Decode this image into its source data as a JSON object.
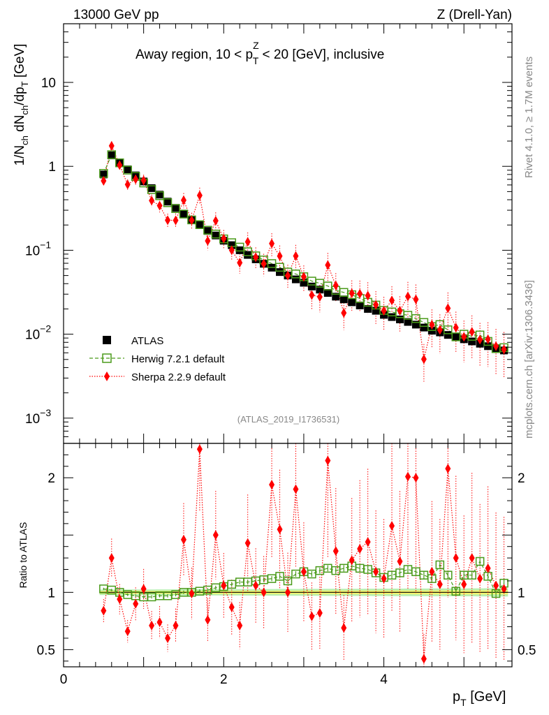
{
  "header": {
    "left": "13000 GeV pp",
    "right": "Z (Drell-Yan)",
    "title_main": "Away region, 10 < p",
    "title_sup": "Z",
    "title_sub": "T",
    "title_rest": " < 20 [GeV], inclusive",
    "analysis_id": "(ATLAS_2019_I1736531)"
  },
  "side_labels": {
    "rivet": "Rivet 4.1.0, ≥ 1.7M events",
    "mcplots": "mcplots.cern.ch [arXiv:1306.3436]"
  },
  "axes": {
    "ylabel_main": "1/N",
    "ylabel_main_sub1": "ch",
    "ylabel_main_mid": " dN",
    "ylabel_main_sub2": "ch",
    "ylabel_main_end": "/dp",
    "ylabel_main_sub3": "T",
    "ylabel_main_unit": " [GeV]",
    "ylabel_ratio": "Ratio to ATLAS",
    "xlabel": "p",
    "xlabel_sub": "T",
    "xlabel_unit": " [GeV]",
    "main_ticks": [
      {
        "label": "10",
        "sup": "",
        "value": 10
      },
      {
        "label": "1",
        "sup": "",
        "value": 1
      },
      {
        "label": "10",
        "sup": "−1",
        "value": 0.1
      },
      {
        "label": "10",
        "sup": "−2",
        "value": 0.01
      },
      {
        "label": "10",
        "sup": "−3",
        "value": 0.001
      }
    ],
    "ratio_ticks": [
      {
        "label": "2",
        "value": 2
      },
      {
        "label": "1",
        "value": 1
      },
      {
        "label": "0.5",
        "value": 0.5
      }
    ],
    "x_ticks": [
      {
        "label": "0",
        "value": 0
      },
      {
        "label": "2",
        "value": 2
      },
      {
        "label": "4",
        "value": 4
      }
    ]
  },
  "legend": [
    {
      "name": "ATLAS"
    },
    {
      "name": "Herwig 7.2.1 default"
    },
    {
      "name": "Sherpa 2.2.9 default"
    }
  ],
  "colors": {
    "atlas": "#000000",
    "herwig": "#4a9a1a",
    "sherpa": "#ff0000",
    "band_inner": "#f5f570",
    "band_outer": "#b9f0b0"
  },
  "chart_data": {
    "type": "scatter",
    "title": "Away region, 10 < pT(Z) < 20 [GeV], inclusive",
    "xlabel": "pT [GeV]",
    "ylabel": "1/Nch dNch/dpT [GeV]",
    "ylabel_ratio": "Ratio to ATLAS",
    "xlim": [
      0,
      5.6
    ],
    "ylim": [
      0.0005,
      50
    ],
    "ylog": true,
    "ratio_ylim": [
      0.35,
      2.3
    ],
    "x": [
      0.5,
      0.6,
      0.7,
      0.8,
      0.9,
      1.0,
      1.1,
      1.2,
      1.3,
      1.4,
      1.5,
      1.6,
      1.7,
      1.8,
      1.9,
      2.0,
      2.1,
      2.2,
      2.3,
      2.4,
      2.5,
      2.6,
      2.7,
      2.8,
      2.9,
      3.0,
      3.1,
      3.2,
      3.3,
      3.4,
      3.5,
      3.6,
      3.7,
      3.8,
      3.9,
      4.0,
      4.1,
      4.2,
      4.3,
      4.4,
      4.5,
      4.6,
      4.7,
      4.8,
      4.9,
      5.0,
      5.1,
      5.2,
      5.3,
      5.4,
      5.5
    ],
    "series": [
      {
        "name": "ATLAS",
        "values": [
          0.8,
          1.35,
          1.1,
          0.92,
          0.78,
          0.66,
          0.55,
          0.46,
          0.38,
          0.32,
          0.27,
          0.23,
          0.2,
          0.17,
          0.15,
          0.13,
          0.115,
          0.1,
          0.088,
          0.078,
          0.069,
          0.062,
          0.055,
          0.05,
          0.045,
          0.041,
          0.037,
          0.034,
          0.031,
          0.028,
          0.026,
          0.024,
          0.022,
          0.02,
          0.019,
          0.017,
          0.016,
          0.015,
          0.014,
          0.013,
          0.012,
          0.011,
          0.0105,
          0.0098,
          0.0092,
          0.0087,
          0.0082,
          0.0077,
          0.0072,
          0.0068,
          0.0064
        ]
      },
      {
        "name": "Herwig 7.2.1 default",
        "ratio": [
          1.03,
          1.02,
          1.0,
          0.98,
          0.97,
          0.96,
          0.96,
          0.97,
          0.97,
          0.98,
          1.0,
          1.0,
          1.01,
          1.02,
          1.04,
          1.05,
          1.07,
          1.09,
          1.09,
          1.1,
          1.11,
          1.12,
          1.14,
          1.1,
          1.16,
          1.18,
          1.16,
          1.19,
          1.21,
          1.19,
          1.21,
          1.23,
          1.21,
          1.2,
          1.17,
          1.13,
          1.15,
          1.17,
          1.2,
          1.18,
          1.15,
          1.12,
          1.24,
          1.15,
          1.01,
          1.15,
          1.15,
          1.27,
          1.14,
          0.99,
          1.08
        ]
      },
      {
        "name": "Sherpa 2.2.9 default",
        "ratio": [
          0.84,
          1.3,
          0.94,
          0.66,
          0.9,
          1.03,
          0.71,
          0.74,
          0.6,
          0.71,
          1.46,
          0.99,
          2.25,
          0.76,
          1.5,
          1.06,
          0.87,
          0.71,
          1.43,
          1.06,
          1.0,
          1.94,
          1.55,
          1.0,
          1.9,
          1.18,
          0.79,
          0.82,
          2.15,
          1.36,
          0.69,
          1.28,
          1.38,
          1.44,
          1.18,
          1.12,
          1.58,
          1.27,
          2.01,
          2.0,
          0.42,
          1.18,
          1.07,
          2.08,
          1.3,
          1.07,
          1.3,
          1.12,
          1.21,
          1.06,
          1.03
        ]
      }
    ]
  }
}
